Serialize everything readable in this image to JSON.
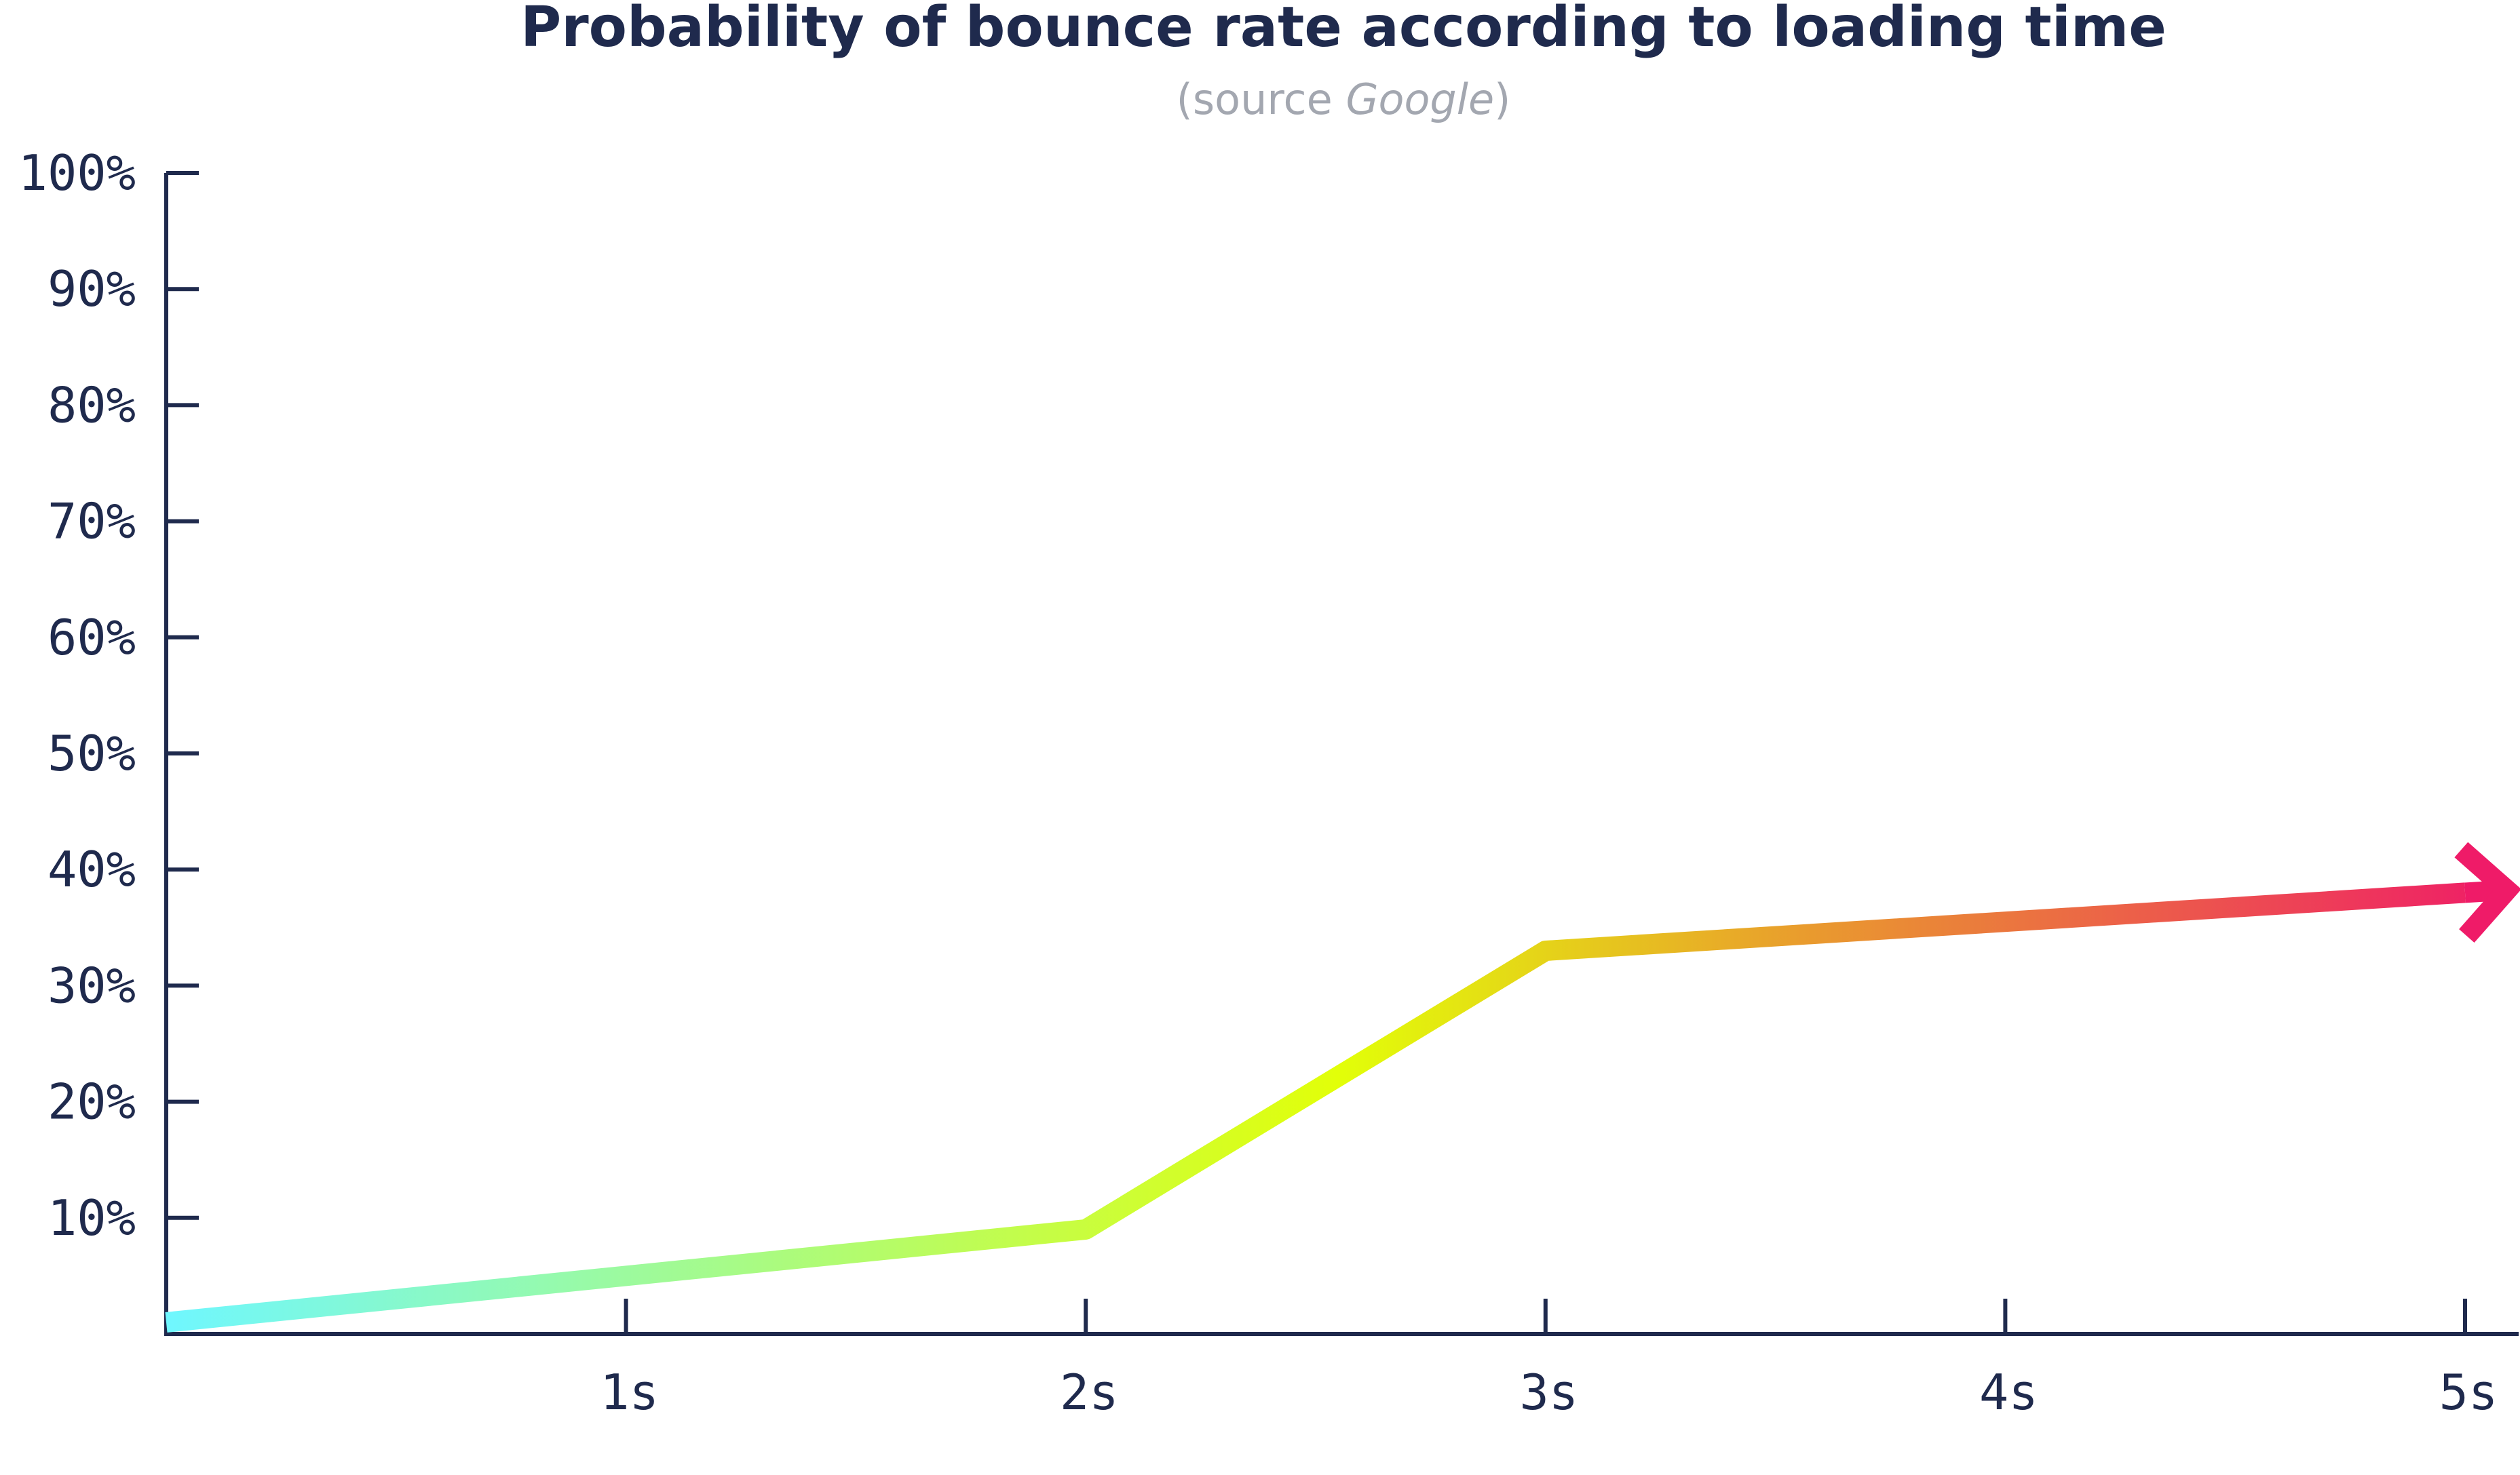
{
  "chart_data": {
    "type": "line",
    "title": "Probability of bounce rate according to loading time",
    "subtitle": {
      "prefix": "(source ",
      "source": "Google",
      "suffix": ")"
    },
    "xlabel": "",
    "ylabel": "",
    "x_ticks": [
      "1s",
      "2s",
      "3s",
      "4s",
      "5s"
    ],
    "y_ticks": [
      "10%",
      "20%",
      "30%",
      "40%",
      "50%",
      "60%",
      "70%",
      "80%",
      "90%",
      "100%"
    ],
    "xlim": [
      0,
      5
    ],
    "ylim": [
      0,
      100
    ],
    "grid": false,
    "series": [
      {
        "x": [
          0,
          2,
          3,
          5
        ],
        "y": [
          1,
          9,
          33,
          38
        ],
        "arrow_end": true,
        "gradient": [
          "#6ff7ff",
          "#e2ff08",
          "#e99b2e",
          "#ef1b68"
        ]
      }
    ],
    "colors": {
      "axis": "#1f2a4d",
      "title": "#1f2a4d",
      "subtitle": "#a3a7b0"
    }
  }
}
